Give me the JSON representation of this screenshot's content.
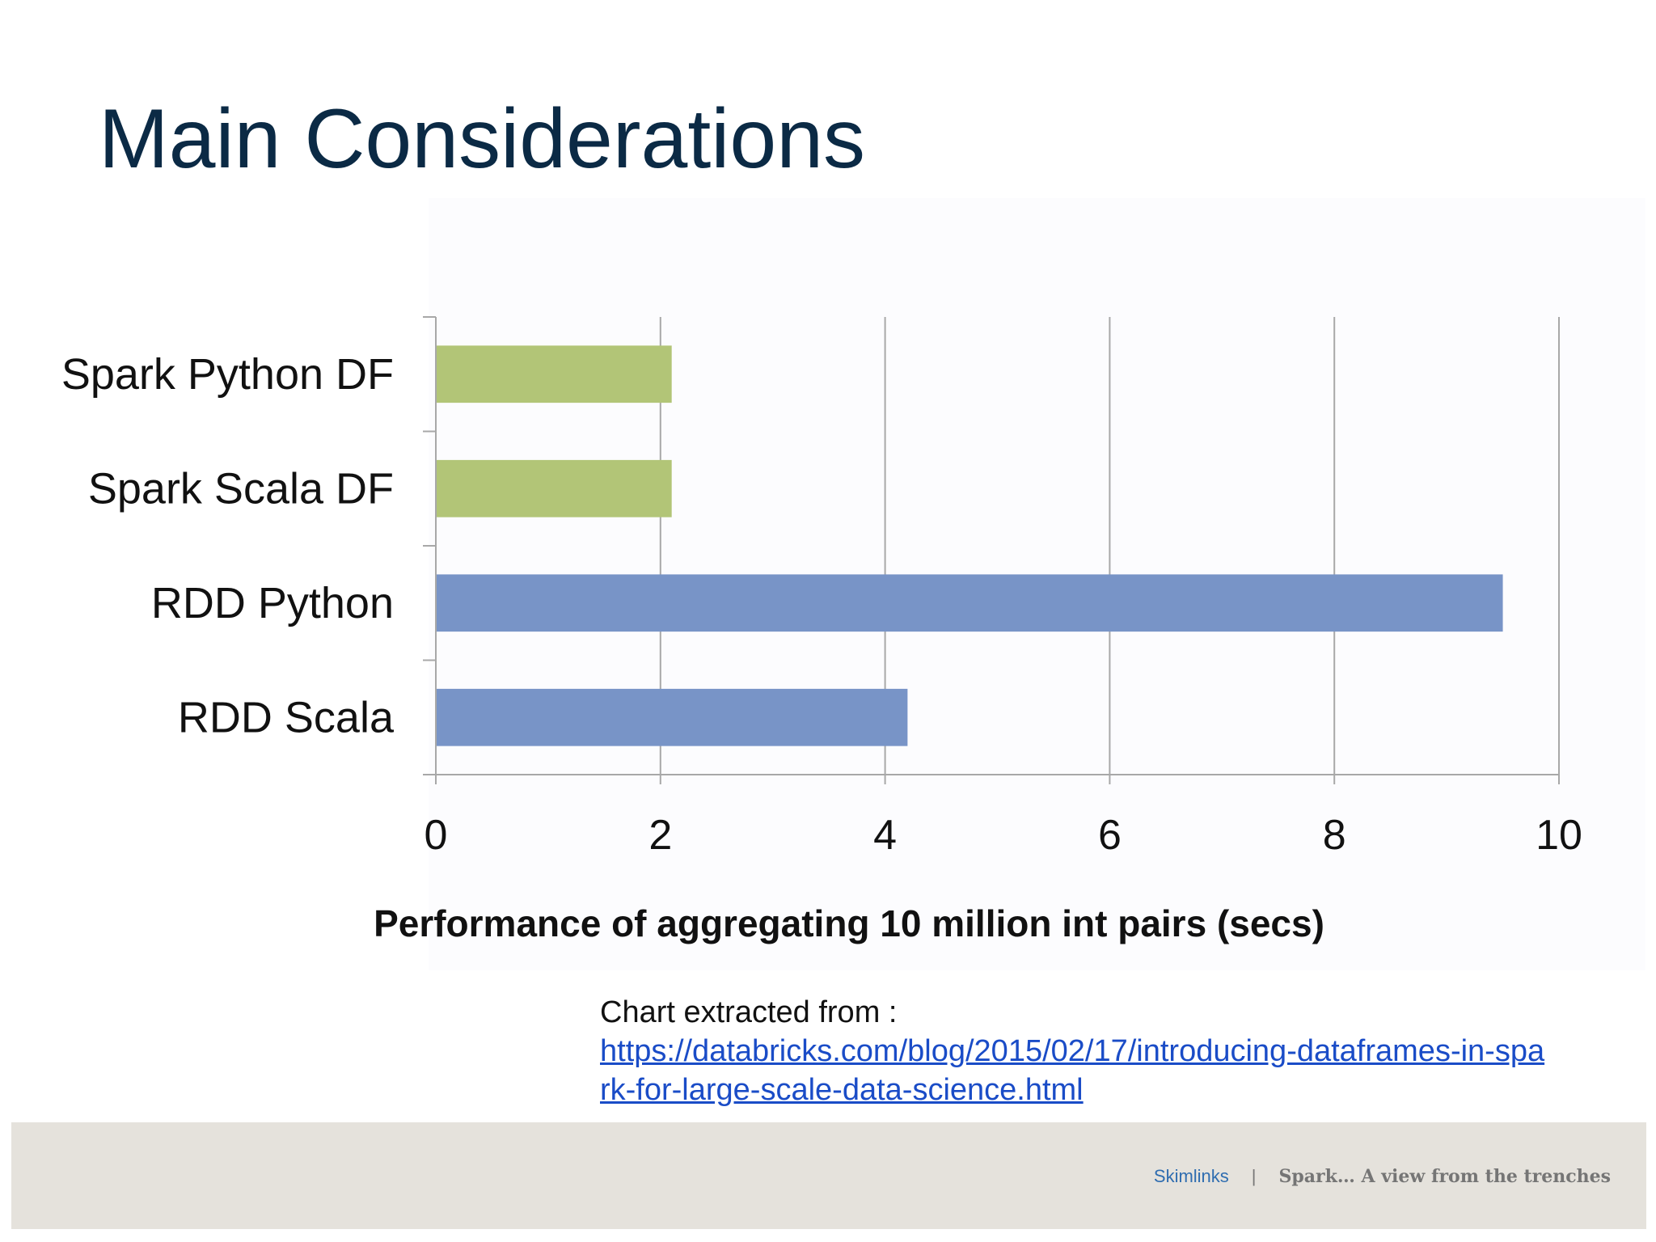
{
  "slide": {
    "title": "Main Considerations"
  },
  "chart_data": {
    "type": "bar",
    "orientation": "horizontal",
    "categories": [
      "Spark Python DF",
      "Spark Scala DF",
      "RDD Python",
      "RDD Scala"
    ],
    "values": [
      2.1,
      2.1,
      9.5,
      4.2
    ],
    "colors": [
      "#b2c577",
      "#b2c577",
      "#7894c7",
      "#7894c7"
    ],
    "xlim": [
      0,
      10
    ],
    "xticks": [
      0,
      2,
      4,
      6,
      8,
      10
    ],
    "xlabel": "Performance of aggregating 10 million int pairs (secs)",
    "grid": "vertical",
    "legend": "none"
  },
  "source": {
    "label": "Chart extracted from :",
    "url": "https://databricks.com/blog/2015/02/17/introducing-dataframes-in-spark-for-large-scale-data-science.html"
  },
  "footer": {
    "brand": "Skimlinks",
    "separator": "|",
    "deck_title": "Spark… A view from the trenches"
  },
  "colors": {
    "title": "#0b2a45",
    "link": "#1a4cc7",
    "footer_bg": "#e5e2dc",
    "footer_brand": "#2f6db0",
    "gridline": "#a8a8a8"
  }
}
